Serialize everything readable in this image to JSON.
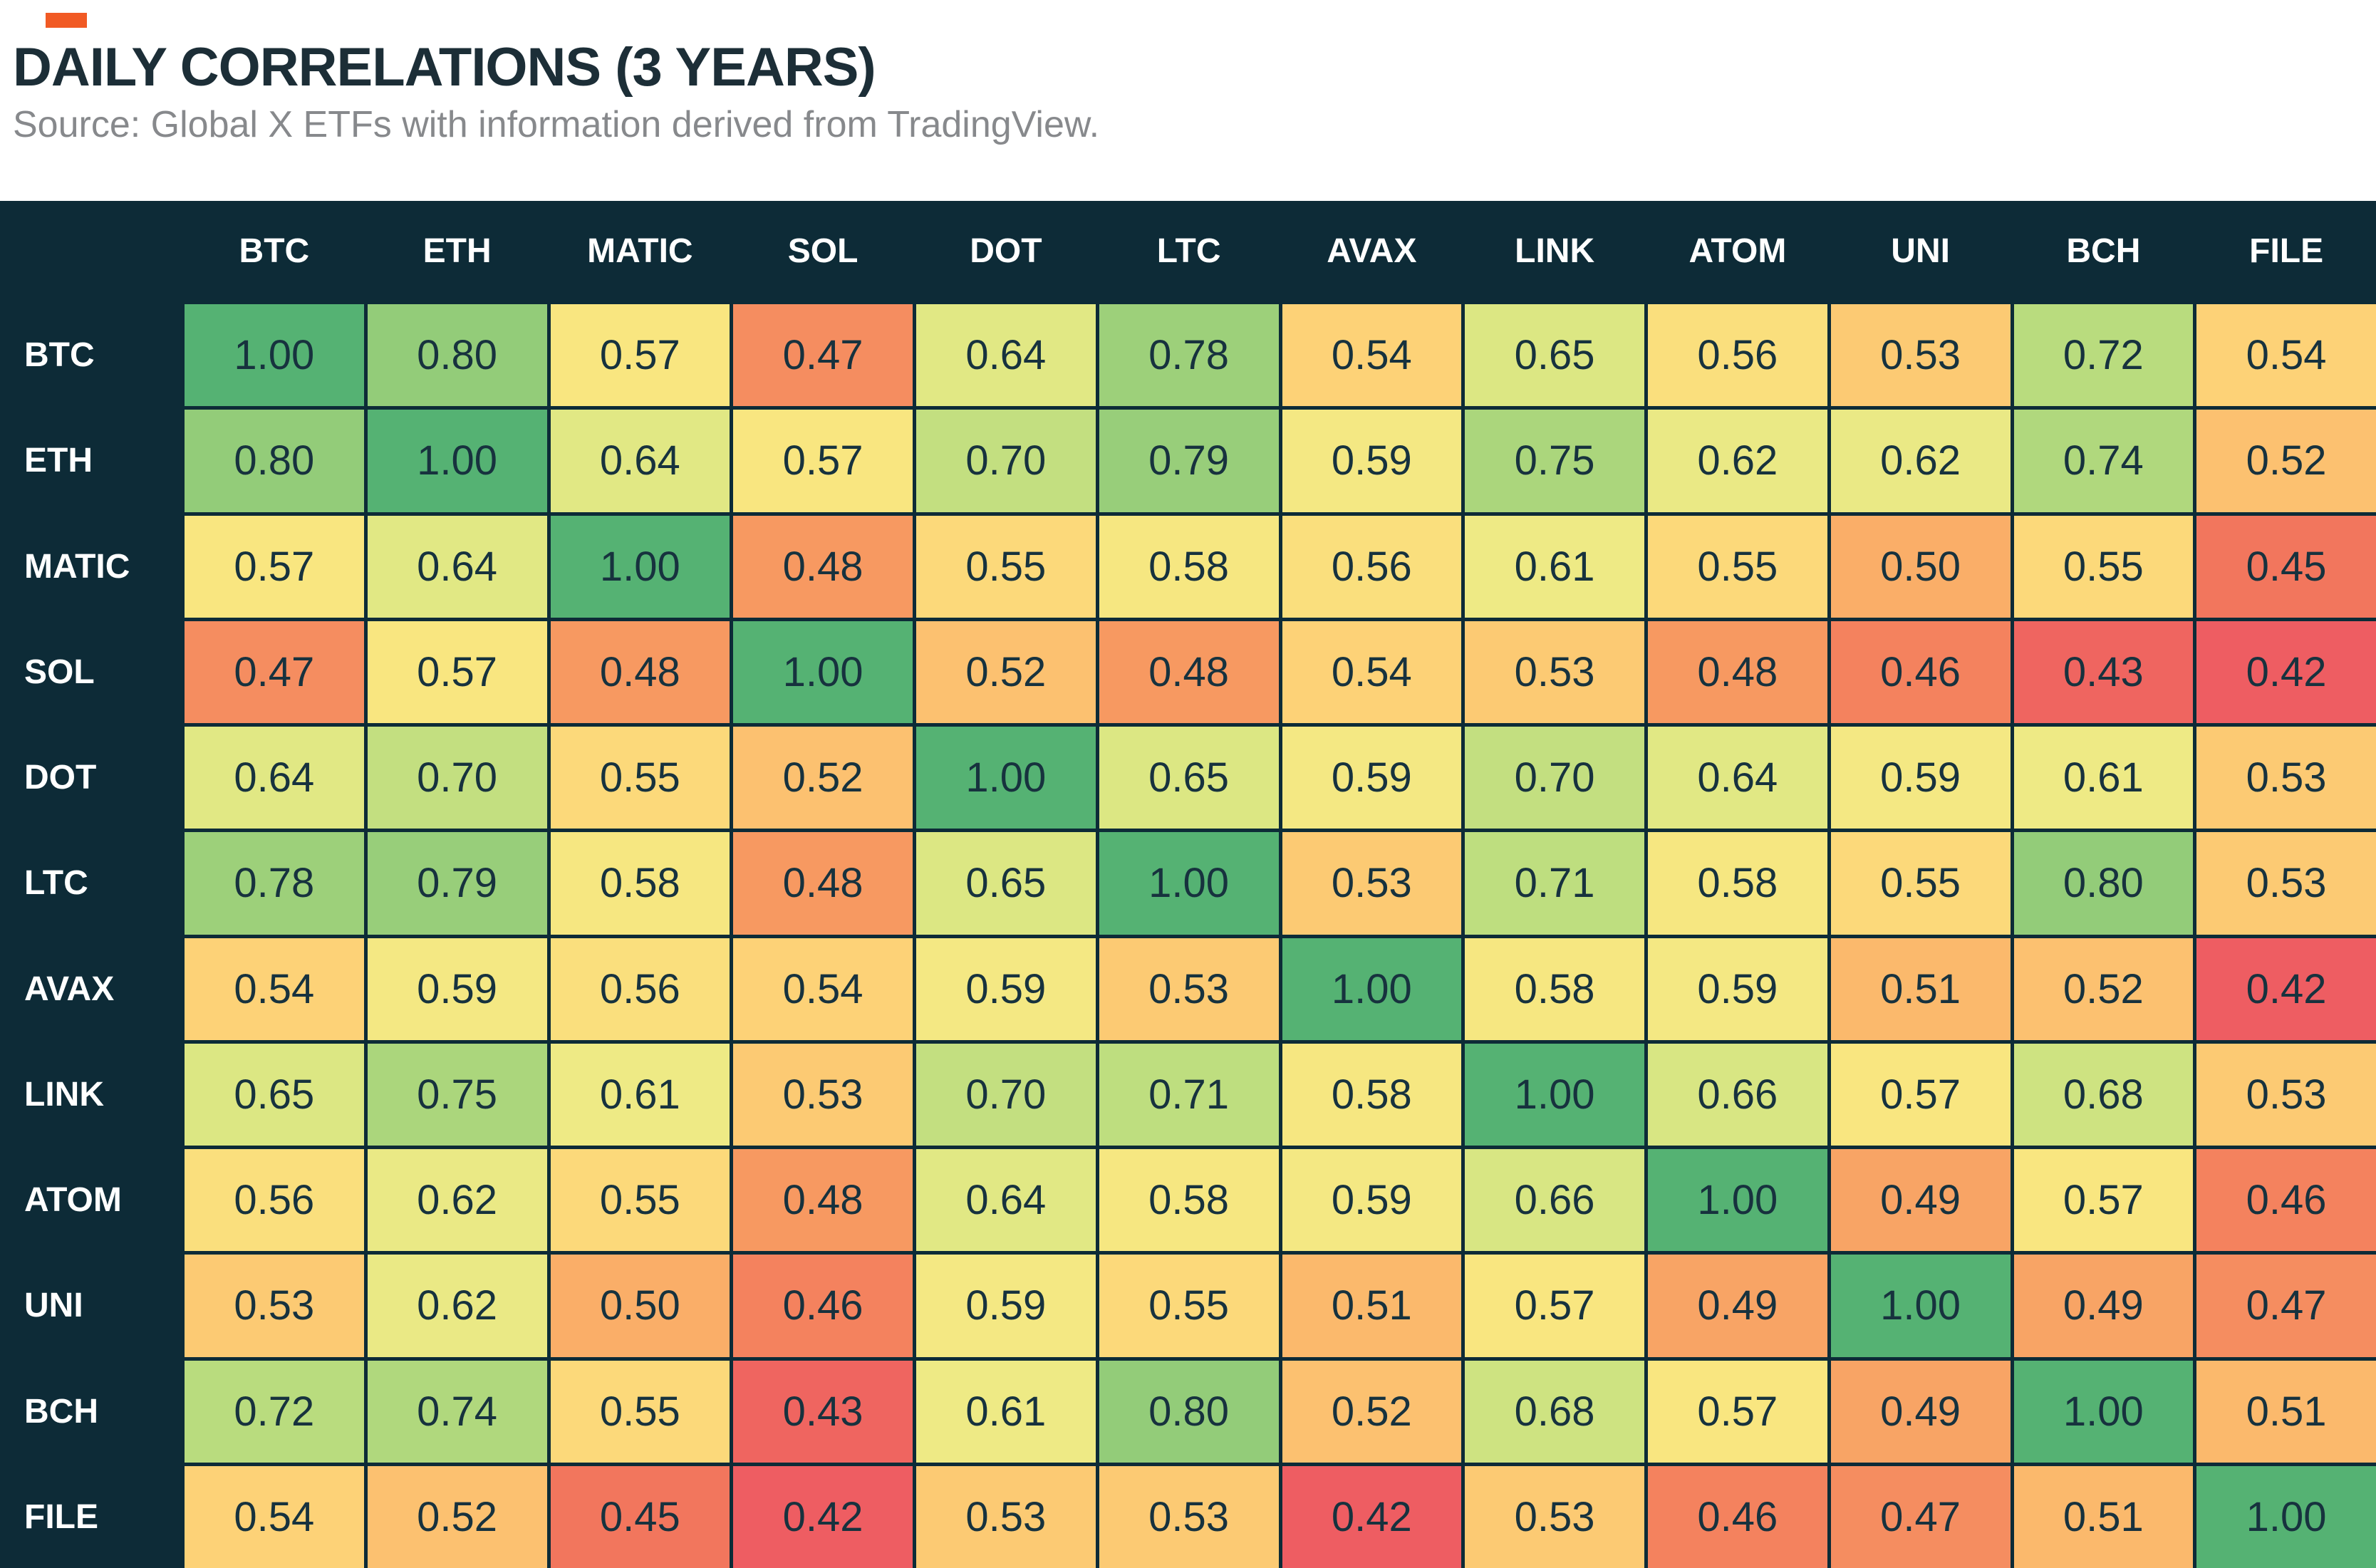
{
  "page": {
    "title": "DAILY CORRELATIONS (3 YEARS)",
    "source": "Source: Global X ETFs with information derived from TradingView.",
    "accent_color": "#f15a24",
    "header_text_color": "#1c2e37",
    "source_text_color": "#87898c"
  },
  "chart_data": {
    "type": "heatmap",
    "title": "DAILY CORRELATIONS (3 YEARS)",
    "subtitle": "Source: Global X ETFs with information derived from TradingView.",
    "labels": [
      "BTC",
      "ETH",
      "MATIC",
      "SOL",
      "DOT",
      "LTC",
      "AVAX",
      "LINK",
      "ATOM",
      "UNI",
      "BCH",
      "FILE"
    ],
    "matrix": [
      [
        1.0,
        0.8,
        0.57,
        0.47,
        0.64,
        0.78,
        0.54,
        0.65,
        0.56,
        0.53,
        0.72,
        0.54
      ],
      [
        0.8,
        1.0,
        0.64,
        0.57,
        0.7,
        0.79,
        0.59,
        0.75,
        0.62,
        0.62,
        0.74,
        0.52
      ],
      [
        0.57,
        0.64,
        1.0,
        0.48,
        0.55,
        0.58,
        0.56,
        0.61,
        0.55,
        0.5,
        0.55,
        0.45
      ],
      [
        0.47,
        0.57,
        0.48,
        1.0,
        0.52,
        0.48,
        0.54,
        0.53,
        0.48,
        0.46,
        0.43,
        0.42
      ],
      [
        0.64,
        0.7,
        0.55,
        0.52,
        1.0,
        0.65,
        0.59,
        0.7,
        0.64,
        0.59,
        0.61,
        0.53
      ],
      [
        0.78,
        0.79,
        0.58,
        0.48,
        0.65,
        1.0,
        0.53,
        0.71,
        0.58,
        0.55,
        0.8,
        0.53
      ],
      [
        0.54,
        0.59,
        0.56,
        0.54,
        0.59,
        0.53,
        1.0,
        0.58,
        0.59,
        0.51,
        0.52,
        0.42
      ],
      [
        0.65,
        0.75,
        0.61,
        0.53,
        0.7,
        0.71,
        0.58,
        1.0,
        0.66,
        0.57,
        0.68,
        0.53
      ],
      [
        0.56,
        0.62,
        0.55,
        0.48,
        0.64,
        0.58,
        0.59,
        0.66,
        1.0,
        0.49,
        0.57,
        0.46
      ],
      [
        0.53,
        0.62,
        0.5,
        0.46,
        0.59,
        0.55,
        0.51,
        0.57,
        0.49,
        1.0,
        0.49,
        0.47
      ],
      [
        0.72,
        0.74,
        0.55,
        0.43,
        0.61,
        0.8,
        0.52,
        0.68,
        0.57,
        0.49,
        1.0,
        0.51
      ],
      [
        0.54,
        0.52,
        0.45,
        0.42,
        0.53,
        0.53,
        0.42,
        0.53,
        0.46,
        0.47,
        0.51,
        1.0
      ]
    ],
    "value_format": "0.00",
    "legend_position": "none",
    "grid_color": "#0d2b37",
    "header_bg": "#0d2b37",
    "header_text": "#ffffff",
    "cell_text_color": "#17323e",
    "colorscale": {
      "type": "red-yellow-green",
      "domain": [
        0.42,
        1.0
      ],
      "stops": [
        [
          0.42,
          "#ee5d62"
        ],
        [
          0.45,
          "#f2765d"
        ],
        [
          0.48,
          "#f79961"
        ],
        [
          0.51,
          "#fbb96c"
        ],
        [
          0.54,
          "#fdd277"
        ],
        [
          0.57,
          "#f9e680"
        ],
        [
          0.61,
          "#eeea85"
        ],
        [
          0.66,
          "#d8e683"
        ],
        [
          0.72,
          "#b9dc7e"
        ],
        [
          0.8,
          "#93cc79"
        ],
        [
          1.0,
          "#55b273"
        ]
      ]
    }
  }
}
